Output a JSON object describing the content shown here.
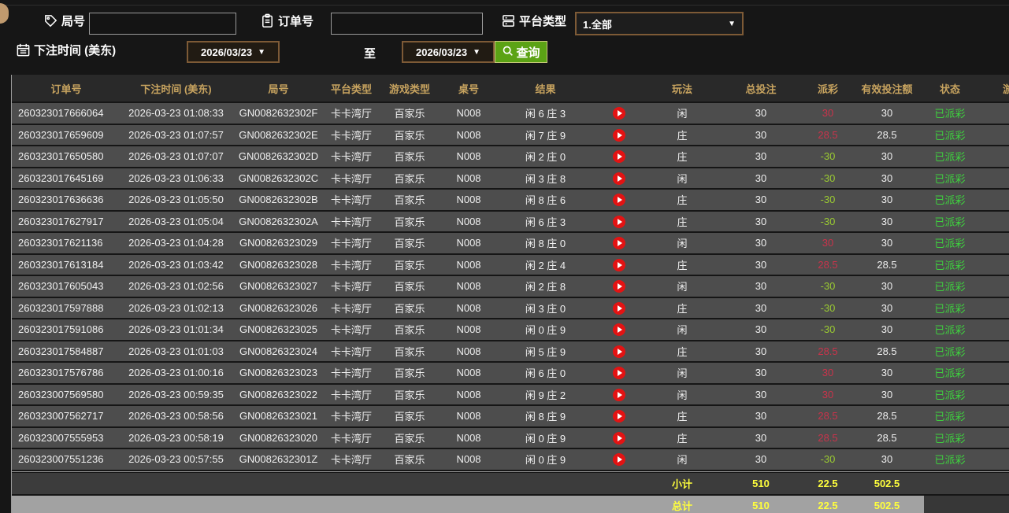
{
  "filters": {
    "game_no_label": "局号",
    "order_no_label": "订单号",
    "platform_label": "平台类型",
    "platform_value": "1.全部",
    "bet_time_label": "下注时间 (美东)",
    "date_from": "2026/03/23",
    "date_to": "2026/03/23",
    "to_label": "至",
    "query_label": "查询"
  },
  "colors": {
    "header_gold": "#c7a35f",
    "row_bg": "#4d4d4d",
    "win_red": "#c9334b",
    "loss_green": "#9aca32",
    "status_green": "#3ed23e",
    "summary_yellow": "#ffff3c",
    "query_green": "#5ba315",
    "select_border_brown": "#7d5a36"
  },
  "table": {
    "headers": [
      "订单号",
      "下注时间 (美东)",
      "局号",
      "平台类型",
      "游戏类型",
      "桌号",
      "结果",
      "",
      "玩法",
      "总投注",
      "派彩",
      "有效投注额",
      "状态",
      "游戏"
    ],
    "rows": [
      {
        "order_id": "260323017666064",
        "bet_time": "2026-03-23 01:08:33",
        "game_no": "GN0082632302F",
        "platform": "卡卡湾厅",
        "game_type": "百家乐",
        "table_no": "N008",
        "result": "闲 6 庄 3",
        "bet_type": "闲",
        "total_bet": "30",
        "payout": "30",
        "valid_bet": "30",
        "status": "已派彩"
      },
      {
        "order_id": "260323017659609",
        "bet_time": "2026-03-23 01:07:57",
        "game_no": "GN0082632302E",
        "platform": "卡卡湾厅",
        "game_type": "百家乐",
        "table_no": "N008",
        "result": "闲 7 庄 9",
        "bet_type": "庄",
        "total_bet": "30",
        "payout": "28.5",
        "valid_bet": "28.5",
        "status": "已派彩"
      },
      {
        "order_id": "260323017650580",
        "bet_time": "2026-03-23 01:07:07",
        "game_no": "GN0082632302D",
        "platform": "卡卡湾厅",
        "game_type": "百家乐",
        "table_no": "N008",
        "result": "闲 2 庄 0",
        "bet_type": "庄",
        "total_bet": "30",
        "payout": "-30",
        "valid_bet": "30",
        "status": "已派彩"
      },
      {
        "order_id": "260323017645169",
        "bet_time": "2026-03-23 01:06:33",
        "game_no": "GN0082632302C",
        "platform": "卡卡湾厅",
        "game_type": "百家乐",
        "table_no": "N008",
        "result": "闲 3 庄 8",
        "bet_type": "闲",
        "total_bet": "30",
        "payout": "-30",
        "valid_bet": "30",
        "status": "已派彩"
      },
      {
        "order_id": "260323017636636",
        "bet_time": "2026-03-23 01:05:50",
        "game_no": "GN0082632302B",
        "platform": "卡卡湾厅",
        "game_type": "百家乐",
        "table_no": "N008",
        "result": "闲 8 庄 6",
        "bet_type": "庄",
        "total_bet": "30",
        "payout": "-30",
        "valid_bet": "30",
        "status": "已派彩"
      },
      {
        "order_id": "260323017627917",
        "bet_time": "2026-03-23 01:05:04",
        "game_no": "GN0082632302A",
        "platform": "卡卡湾厅",
        "game_type": "百家乐",
        "table_no": "N008",
        "result": "闲 6 庄 3",
        "bet_type": "庄",
        "total_bet": "30",
        "payout": "-30",
        "valid_bet": "30",
        "status": "已派彩"
      },
      {
        "order_id": "260323017621136",
        "bet_time": "2026-03-23 01:04:28",
        "game_no": "GN00826323029",
        "platform": "卡卡湾厅",
        "game_type": "百家乐",
        "table_no": "N008",
        "result": "闲 8 庄 0",
        "bet_type": "闲",
        "total_bet": "30",
        "payout": "30",
        "valid_bet": "30",
        "status": "已派彩"
      },
      {
        "order_id": "260323017613184",
        "bet_time": "2026-03-23 01:03:42",
        "game_no": "GN00826323028",
        "platform": "卡卡湾厅",
        "game_type": "百家乐",
        "table_no": "N008",
        "result": "闲 2 庄 4",
        "bet_type": "庄",
        "total_bet": "30",
        "payout": "28.5",
        "valid_bet": "28.5",
        "status": "已派彩"
      },
      {
        "order_id": "260323017605043",
        "bet_time": "2026-03-23 01:02:56",
        "game_no": "GN00826323027",
        "platform": "卡卡湾厅",
        "game_type": "百家乐",
        "table_no": "N008",
        "result": "闲 2 庄 8",
        "bet_type": "闲",
        "total_bet": "30",
        "payout": "-30",
        "valid_bet": "30",
        "status": "已派彩"
      },
      {
        "order_id": "260323017597888",
        "bet_time": "2026-03-23 01:02:13",
        "game_no": "GN00826323026",
        "platform": "卡卡湾厅",
        "game_type": "百家乐",
        "table_no": "N008",
        "result": "闲 3 庄 0",
        "bet_type": "庄",
        "total_bet": "30",
        "payout": "-30",
        "valid_bet": "30",
        "status": "已派彩"
      },
      {
        "order_id": "260323017591086",
        "bet_time": "2026-03-23 01:01:34",
        "game_no": "GN00826323025",
        "platform": "卡卡湾厅",
        "game_type": "百家乐",
        "table_no": "N008",
        "result": "闲 0 庄 9",
        "bet_type": "闲",
        "total_bet": "30",
        "payout": "-30",
        "valid_bet": "30",
        "status": "已派彩"
      },
      {
        "order_id": "260323017584887",
        "bet_time": "2026-03-23 01:01:03",
        "game_no": "GN00826323024",
        "platform": "卡卡湾厅",
        "game_type": "百家乐",
        "table_no": "N008",
        "result": "闲 5 庄 9",
        "bet_type": "庄",
        "total_bet": "30",
        "payout": "28.5",
        "valid_bet": "28.5",
        "status": "已派彩"
      },
      {
        "order_id": "260323017576786",
        "bet_time": "2026-03-23 01:00:16",
        "game_no": "GN00826323023",
        "platform": "卡卡湾厅",
        "game_type": "百家乐",
        "table_no": "N008",
        "result": "闲 6 庄 0",
        "bet_type": "闲",
        "total_bet": "30",
        "payout": "30",
        "valid_bet": "30",
        "status": "已派彩"
      },
      {
        "order_id": "260323007569580",
        "bet_time": "2026-03-23 00:59:35",
        "game_no": "GN00826323022",
        "platform": "卡卡湾厅",
        "game_type": "百家乐",
        "table_no": "N008",
        "result": "闲 9 庄 2",
        "bet_type": "闲",
        "total_bet": "30",
        "payout": "30",
        "valid_bet": "30",
        "status": "已派彩"
      },
      {
        "order_id": "260323007562717",
        "bet_time": "2026-03-23 00:58:56",
        "game_no": "GN00826323021",
        "platform": "卡卡湾厅",
        "game_type": "百家乐",
        "table_no": "N008",
        "result": "闲 8 庄 9",
        "bet_type": "庄",
        "total_bet": "30",
        "payout": "28.5",
        "valid_bet": "28.5",
        "status": "已派彩"
      },
      {
        "order_id": "260323007555953",
        "bet_time": "2026-03-23 00:58:19",
        "game_no": "GN00826323020",
        "platform": "卡卡湾厅",
        "game_type": "百家乐",
        "table_no": "N008",
        "result": "闲 0 庄 9",
        "bet_type": "庄",
        "total_bet": "30",
        "payout": "28.5",
        "valid_bet": "28.5",
        "status": "已派彩"
      },
      {
        "order_id": "260323007551236",
        "bet_time": "2026-03-23 00:57:55",
        "game_no": "GN0082632301Z",
        "platform": "卡卡湾厅",
        "game_type": "百家乐",
        "table_no": "N008",
        "result": "闲 0 庄 9",
        "bet_type": "闲",
        "total_bet": "30",
        "payout": "-30",
        "valid_bet": "30",
        "status": "已派彩"
      }
    ],
    "subtotal": {
      "label": "小计",
      "total_bet": "510",
      "payout": "22.5",
      "valid_bet": "502.5"
    },
    "total": {
      "label": "总计",
      "total_bet": "510",
      "payout": "22.5",
      "valid_bet": "502.5"
    }
  }
}
